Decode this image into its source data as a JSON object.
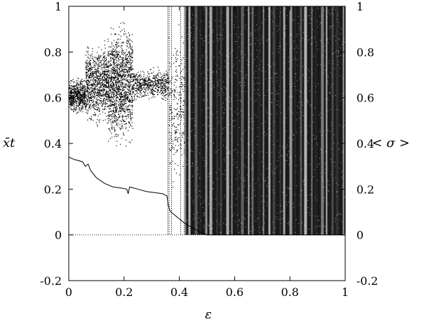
{
  "chart_data": {
    "type": "scatter",
    "title": "",
    "xlabel": "ε",
    "ylabel_left": "x̄t",
    "ylabel_right": "< σ >",
    "xlim": [
      0,
      1
    ],
    "ylim": [
      -0.2,
      1
    ],
    "x_ticks": [
      "0",
      "0.2",
      "0.4",
      "0.6",
      "0.8",
      "1"
    ],
    "y_ticks_left": [
      "-0.2",
      "0",
      "0.2",
      "0.4",
      "0.6",
      "0.8",
      "1"
    ],
    "y_ticks_right": [
      "-0.2",
      "0",
      "0.2",
      "0.4",
      "0.6",
      "0.8",
      "1"
    ],
    "grid": false,
    "legend": "none",
    "colors": {
      "points": "#000000",
      "background": "#ffffff"
    },
    "series": [
      {
        "kind": "bifurcation-points",
        "description_regions": [
          {
            "x": [
              0.0,
              0.06
            ],
            "y": [
              0.52,
              0.7
            ]
          },
          {
            "x": [
              0.06,
              0.14
            ],
            "y": [
              0.45,
              0.88
            ]
          },
          {
            "x": [
              0.14,
              0.23
            ],
            "y": [
              0.35,
              0.97
            ]
          },
          {
            "x": [
              0.23,
              0.36
            ],
            "y": [
              0.58,
              0.74
            ]
          },
          {
            "x": [
              0.36,
              0.42
            ],
            "y": [
              0.08,
              1.0
            ]
          },
          {
            "x": [
              0.42,
              1.0
            ],
            "y": [
              0.0,
              1.0
            ]
          }
        ]
      },
      {
        "kind": "mean-sigma-line",
        "x": [
          0.0,
          0.02,
          0.05,
          0.06,
          0.07,
          0.08,
          0.1,
          0.13,
          0.16,
          0.19,
          0.21,
          0.215,
          0.22,
          0.25,
          0.28,
          0.31,
          0.34,
          0.355,
          0.36,
          0.365,
          0.37,
          0.38,
          0.4,
          0.42,
          0.45,
          0.48,
          0.5,
          1.0
        ],
        "y": [
          0.34,
          0.33,
          0.32,
          0.3,
          0.31,
          0.28,
          0.25,
          0.225,
          0.21,
          0.205,
          0.2,
          0.18,
          0.21,
          0.2,
          0.19,
          0.185,
          0.18,
          0.17,
          0.13,
          0.11,
          0.1,
          0.09,
          0.07,
          0.05,
          0.03,
          0.01,
          0.0,
          0.0
        ]
      },
      {
        "kind": "zero-reference",
        "x": [
          0.0,
          0.5
        ],
        "y": [
          0.0,
          0.0
        ]
      }
    ]
  }
}
